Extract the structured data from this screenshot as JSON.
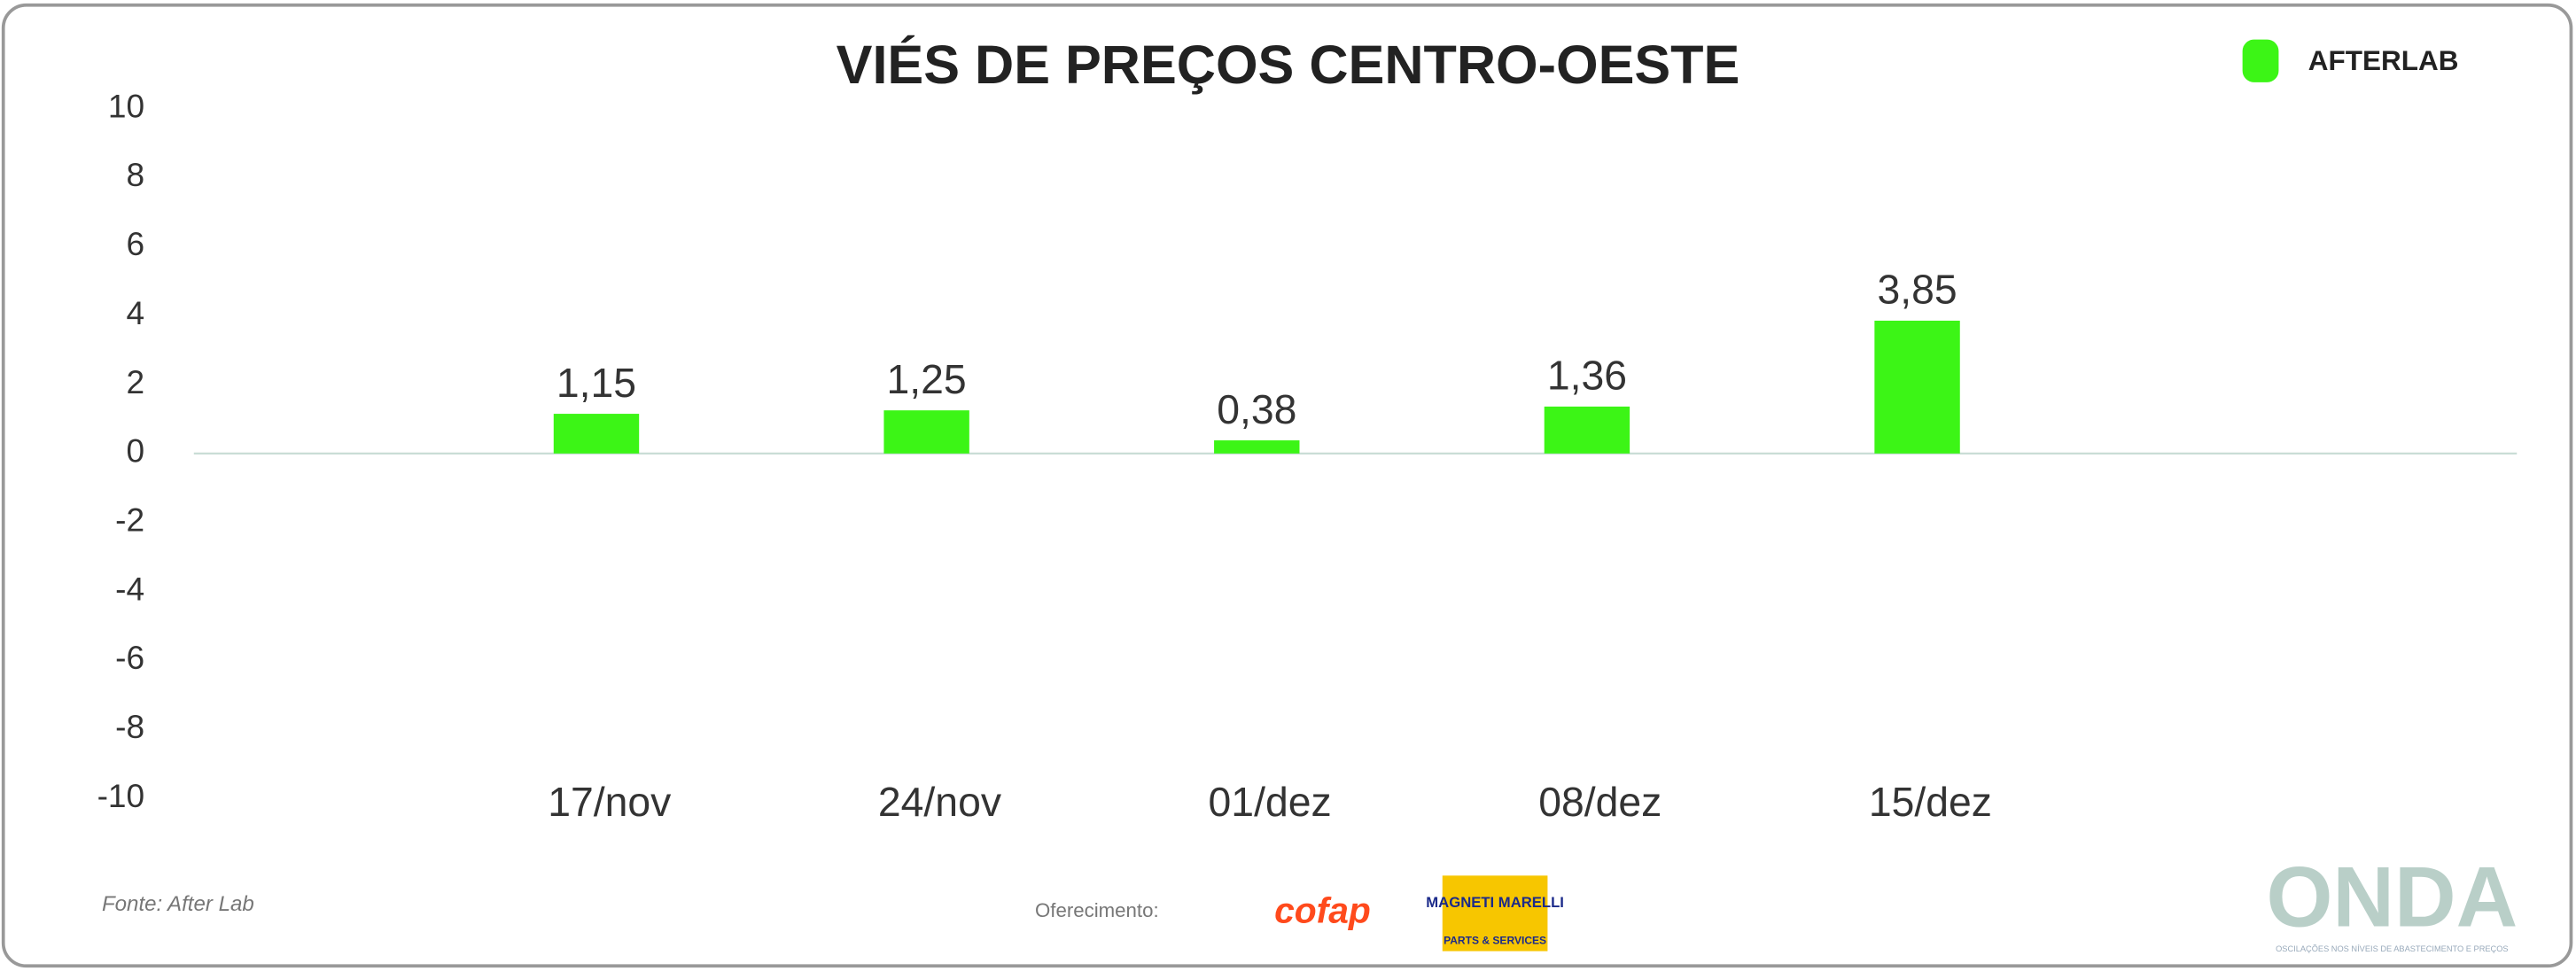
{
  "chart_data": {
    "type": "bar",
    "title": "VIÉS DE PREÇOS CENTRO-OESTE",
    "categories": [
      "17/nov",
      "24/nov",
      "01/dez",
      "08/dez",
      "15/dez"
    ],
    "values": [
      1.15,
      1.25,
      0.38,
      1.36,
      3.85
    ],
    "value_labels": [
      "1,15",
      "1,25",
      "0,38",
      "1,36",
      "3,85"
    ],
    "color": "#3cf516",
    "ylim": [
      -10,
      10
    ],
    "yticks": [
      -10,
      -8,
      -6,
      -4,
      -2,
      0,
      2,
      4,
      6,
      8,
      10
    ]
  },
  "brand": "AFTERLAB",
  "source": "Fonte: After Lab",
  "sponsor_label": "Oferecimento:",
  "sponsors": [
    "cofap",
    "MAGNETI MARELLI",
    "PARTS & SERVICES"
  ],
  "onda": {
    "title": "ONDA",
    "subtitle": "OSCILAÇÕES NOS NÍVEIS DE ABASTECIMENTO E PREÇOS"
  }
}
